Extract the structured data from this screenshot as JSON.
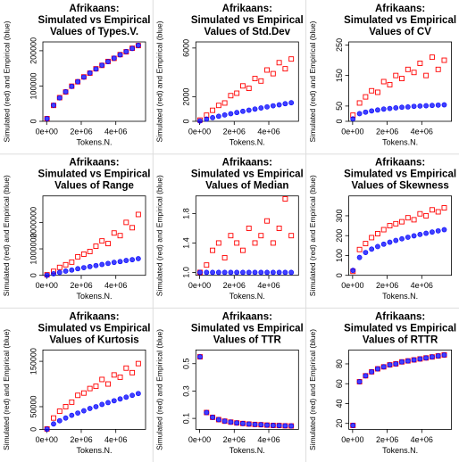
{
  "chart_data": [
    {
      "type": "scatter",
      "title": [
        "Afrikaans:",
        "Simulated vs Empirical",
        "Values of Types.V."
      ],
      "x_label": "Tokens.N.",
      "y_label": "Simulated (red) and Empirical (blue)",
      "x": [
        20000,
        400000,
        750000,
        1100000,
        1450000,
        1800000,
        2150000,
        2500000,
        2850000,
        3200000,
        3550000,
        3900000,
        4250000,
        4600000,
        4950000,
        5300000
      ],
      "series": [
        {
          "color": "#ff0000",
          "values": [
            7600,
            45000,
            67000,
            83000,
            99500,
            112000,
            125800,
            136500,
            148800,
            158500,
            169600,
            178400,
            189000,
            197000,
            207000,
            214600
          ]
        },
        {
          "color": "#0000ff",
          "values": [
            7500,
            45600,
            66400,
            83800,
            99000,
            112400,
            125200,
            137100,
            148200,
            159000,
            169100,
            179000,
            188500,
            197600,
            206500,
            215200
          ]
        }
      ],
      "xlim": [
        -220000,
        5720000
      ],
      "ylim": [
        0,
        225000
      ],
      "xticks": [
        {
          "value": 0,
          "label": "0e+00"
        },
        {
          "value": 2000000,
          "label": "2e+06"
        },
        {
          "value": 4000000,
          "label": "4e+06"
        }
      ],
      "yticks": [
        0,
        100000,
        200000
      ]
    },
    {
      "type": "scatter",
      "title": [
        "Afrikaans:",
        "Simulated vs Empirical",
        "Values of Std.Dev"
      ],
      "x_label": "Tokens.N.",
      "y_label": "Simulated (red) and Empirical (blue)",
      "x": [
        20000,
        400000,
        750000,
        1100000,
        1450000,
        1800000,
        2150000,
        2500000,
        2850000,
        3200000,
        3550000,
        3900000,
        4250000,
        4600000,
        4950000,
        5300000
      ],
      "series": [
        {
          "color": "#ff0000",
          "values": [
            100,
            500,
            900,
            1300,
            1500,
            2100,
            2300,
            2900,
            2700,
            3500,
            3300,
            4200,
            3900,
            4800,
            4300,
            5100
          ]
        },
        {
          "color": "#0000ff",
          "values": [
            30,
            180,
            300,
            410,
            520,
            620,
            720,
            820,
            910,
            1000,
            1090,
            1180,
            1270,
            1350,
            1440,
            1520
          ]
        }
      ],
      "xlim": [
        -220000,
        5720000
      ],
      "ylim": [
        0,
        6500
      ],
      "xticks": [
        {
          "value": 0,
          "label": "0e+00"
        },
        {
          "value": 2000000,
          "label": "2e+06"
        },
        {
          "value": 4000000,
          "label": "4e+06"
        }
      ],
      "yticks": [
        0,
        2000,
        6000
      ]
    },
    {
      "type": "scatter",
      "title": [
        "Afrikaans:",
        "Simulated vs Empirical",
        "Values of CV"
      ],
      "x_label": "Tokens.N.",
      "y_label": "Simulated (red) and Empirical (blue)",
      "x": [
        20000,
        400000,
        750000,
        1100000,
        1450000,
        1800000,
        2150000,
        2500000,
        2850000,
        3200000,
        3550000,
        3900000,
        4250000,
        4600000,
        4950000,
        5300000
      ],
      "series": [
        {
          "color": "#ff0000",
          "values": [
            20,
            60,
            80,
            100,
            95,
            130,
            120,
            150,
            140,
            170,
            160,
            190,
            150,
            210,
            170,
            200
          ]
        },
        {
          "color": "#0000ff",
          "values": [
            8,
            25,
            30,
            34,
            37,
            40,
            42,
            44,
            46,
            47,
            49,
            50,
            51,
            52,
            53,
            54
          ]
        }
      ],
      "xlim": [
        -220000,
        5720000
      ],
      "ylim": [
        0,
        260
      ],
      "xticks": [
        {
          "value": 0,
          "label": "0e+00"
        },
        {
          "value": 2000000,
          "label": "2e+06"
        },
        {
          "value": 4000000,
          "label": "4e+06"
        }
      ],
      "yticks": [
        0,
        50,
        150,
        250
      ]
    },
    {
      "type": "scatter",
      "title": [
        "Afrikaans:",
        "Simulated vs Empirical",
        "Values of Range"
      ],
      "x_label": "Tokens.N.",
      "y_label": "Simulated (red) and Empirical (blue)",
      "x": [
        20000,
        400000,
        750000,
        1100000,
        1450000,
        1800000,
        2150000,
        2500000,
        2850000,
        3200000,
        3550000,
        3900000,
        4250000,
        4600000,
        4950000,
        5300000
      ],
      "series": [
        {
          "color": "#ff0000",
          "values": [
            20000,
            150000,
            300000,
            400000,
            500000,
            700000,
            800000,
            900000,
            1100000,
            1300000,
            1200000,
            1600000,
            1500000,
            2000000,
            1800000,
            2300000
          ]
        },
        {
          "color": "#0000ff",
          "values": [
            5000,
            60000,
            110000,
            160000,
            200000,
            250000,
            290000,
            330000,
            370000,
            410000,
            450000,
            490000,
            520000,
            560000,
            590000,
            630000
          ]
        }
      ],
      "xlim": [
        -220000,
        5720000
      ],
      "ylim": [
        0,
        3000000
      ],
      "xticks": [
        {
          "value": 0,
          "label": "0e+00"
        },
        {
          "value": 2000000,
          "label": "2e+06"
        },
        {
          "value": 4000000,
          "label": "4e+06"
        }
      ],
      "yticks": [
        0,
        1000000,
        2000000
      ]
    },
    {
      "type": "scatter",
      "title": [
        "Afrikaans:",
        "Simulated vs Empirical",
        "Values of Median"
      ],
      "x_label": "Tokens.N.",
      "y_label": "Simulated (red) and Empirical (blue)",
      "x": [
        20000,
        400000,
        750000,
        1100000,
        1450000,
        1800000,
        2150000,
        2500000,
        2850000,
        3200000,
        3550000,
        3900000,
        4250000,
        4600000,
        4950000,
        5300000
      ],
      "series": [
        {
          "color": "#ff0000",
          "values": [
            1,
            1.1,
            1.3,
            1.4,
            1.2,
            1.5,
            1.4,
            1.3,
            1.6,
            1.4,
            1.5,
            1.7,
            1.4,
            1.6,
            2,
            1.5
          ]
        },
        {
          "color": "#0000ff",
          "values": [
            1,
            1,
            1,
            1,
            1,
            1,
            1,
            1,
            1,
            1,
            1,
            1,
            1,
            1,
            1,
            1
          ]
        }
      ],
      "xlim": [
        -220000,
        5720000
      ],
      "ylim": [
        0.96,
        2.04
      ],
      "xticks": [
        {
          "value": 0,
          "label": "0e+00"
        },
        {
          "value": 2000000,
          "label": "2e+06"
        },
        {
          "value": 4000000,
          "label": "4e+06"
        }
      ],
      "yticks": [
        {
          "value": 1,
          "label": "1.0"
        },
        1.4,
        1.8
      ]
    },
    {
      "type": "scatter",
      "title": [
        "Afrikaans:",
        "Simulated vs Empirical",
        "Values of Skewness"
      ],
      "x_label": "Tokens.N.",
      "y_label": "Simulated (red) and Empirical (blue)",
      "x": [
        20000,
        400000,
        750000,
        1100000,
        1450000,
        1800000,
        2150000,
        2500000,
        2850000,
        3200000,
        3550000,
        3900000,
        4250000,
        4600000,
        4950000,
        5300000
      ],
      "series": [
        {
          "color": "#ff0000",
          "values": [
            20,
            130,
            160,
            190,
            210,
            230,
            250,
            260,
            270,
            290,
            280,
            310,
            300,
            330,
            320,
            340
          ]
        },
        {
          "color": "#0000ff",
          "values": [
            25,
            90,
            115,
            132,
            145,
            157,
            167,
            176,
            184,
            192,
            199,
            206,
            212,
            218,
            224,
            230
          ]
        }
      ],
      "xlim": [
        -220000,
        5720000
      ],
      "ylim": [
        0,
        400
      ],
      "xticks": [
        {
          "value": 0,
          "label": "0e+00"
        },
        {
          "value": 2000000,
          "label": "2e+06"
        },
        {
          "value": 4000000,
          "label": "4e+06"
        }
      ],
      "yticks": [
        0,
        100,
        200,
        300
      ]
    },
    {
      "type": "scatter",
      "title": [
        "Afrikaans:",
        "Simulated vs Empirical",
        "Values of Kurtosis"
      ],
      "x_label": "Tokens.N.",
      "y_label": "Simulated (red) and Empirical (blue)",
      "x": [
        20000,
        400000,
        750000,
        1100000,
        1450000,
        1800000,
        2150000,
        2500000,
        2850000,
        3200000,
        3550000,
        3900000,
        4250000,
        4600000,
        4950000,
        5300000
      ],
      "series": [
        {
          "color": "#ff0000",
          "values": [
            1000,
            25000,
            40000,
            50000,
            60000,
            75000,
            80000,
            90000,
            95000,
            110000,
            100000,
            120000,
            115000,
            135000,
            125000,
            145000
          ]
        },
        {
          "color": "#0000ff",
          "values": [
            500,
            12000,
            19000,
            25000,
            31000,
            36000,
            41000,
            46000,
            50000,
            55000,
            59000,
            63000,
            67000,
            71000,
            75000,
            79000
          ]
        }
      ],
      "xlim": [
        -220000,
        5720000
      ],
      "ylim": [
        0,
        175000
      ],
      "xticks": [
        {
          "value": 0,
          "label": "0e+00"
        },
        {
          "value": 2000000,
          "label": "2e+06"
        },
        {
          "value": 4000000,
          "label": "4e+06"
        }
      ],
      "yticks": [
        0,
        50000,
        150000
      ]
    },
    {
      "type": "scatter",
      "title": [
        "Afrikaans:",
        "Simulated vs Empirical",
        "Values of TTR"
      ],
      "x_label": "Tokens.N.",
      "y_label": "Simulated (red) and Empirical (blue)",
      "x": [
        20000,
        400000,
        750000,
        1100000,
        1450000,
        1800000,
        2150000,
        2500000,
        2850000,
        3200000,
        3550000,
        3900000,
        4250000,
        4600000,
        4950000,
        5300000
      ],
      "series": [
        {
          "color": "#ff0000",
          "values": [
            0.55,
            0.143,
            0.108,
            0.091,
            0.08,
            0.073,
            0.067,
            0.063,
            0.059,
            0.056,
            0.054,
            0.051,
            0.049,
            0.048,
            0.046,
            0.045
          ]
        },
        {
          "color": "#0000ff",
          "values": [
            0.55,
            0.143,
            0.108,
            0.091,
            0.08,
            0.073,
            0.067,
            0.063,
            0.059,
            0.056,
            0.054,
            0.051,
            0.049,
            0.048,
            0.046,
            0.045
          ]
        }
      ],
      "xlim": [
        -220000,
        5720000
      ],
      "ylim": [
        0.02,
        0.6
      ],
      "xticks": [
        {
          "value": 0,
          "label": "0e+00"
        },
        {
          "value": 2000000,
          "label": "2e+06"
        },
        {
          "value": 4000000,
          "label": "4e+06"
        }
      ],
      "yticks": [
        0.1,
        0.3,
        0.5
      ]
    },
    {
      "type": "scatter",
      "title": [
        "Afrikaans:",
        "Simulated vs Empirical",
        "Values of RTTR"
      ],
      "x_label": "Tokens.N.",
      "y_label": "Simulated (red) and Empirical (blue)",
      "x": [
        20000,
        400000,
        750000,
        1100000,
        1450000,
        1800000,
        2150000,
        2500000,
        2850000,
        3200000,
        3550000,
        3900000,
        4250000,
        4600000,
        4950000,
        5300000
      ],
      "series": [
        {
          "color": "#ff0000",
          "values": [
            18,
            62,
            68,
            72,
            75,
            77,
            79,
            80,
            82,
            83,
            84,
            85,
            86,
            87,
            88,
            89
          ]
        },
        {
          "color": "#0000ff",
          "values": [
            18,
            62,
            68,
            72,
            75,
            77,
            79,
            80,
            82,
            83,
            84,
            85,
            86,
            87,
            88,
            89
          ]
        }
      ],
      "xlim": [
        -220000,
        5720000
      ],
      "ylim": [
        14,
        94
      ],
      "xticks": [
        {
          "value": 0,
          "label": "0e+00"
        },
        {
          "value": 2000000,
          "label": "2e+06"
        },
        {
          "value": 4000000,
          "label": "4e+06"
        }
      ],
      "yticks": [
        20,
        40,
        60,
        80
      ]
    }
  ]
}
